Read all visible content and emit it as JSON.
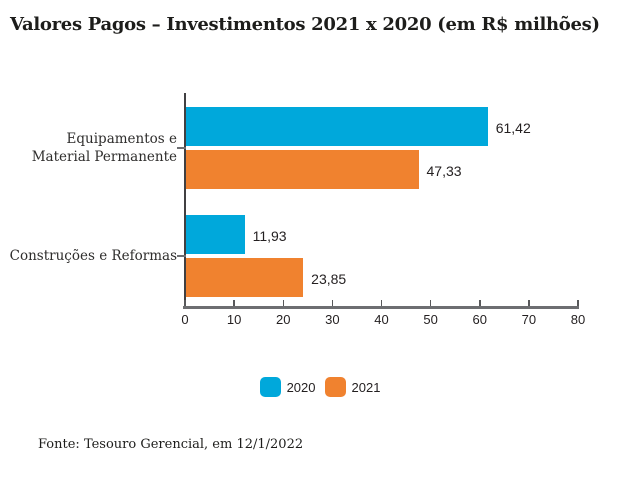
{
  "title": "Valores Pagos – Investimentos 2021 x 2020 (em R$ milhões)",
  "source_note": "Fonte: Tesouro Gerencial, em 12/1/2022",
  "colors": {
    "series_2020": "#00a8db",
    "series_2021": "#f0822f",
    "axis_line": "#6d6e71",
    "tick_mark": "#58595b",
    "text": "#231f20"
  },
  "legend": {
    "items": [
      {
        "label": "2020",
        "color": "#00a8db"
      },
      {
        "label": "2021",
        "color": "#f0822f"
      }
    ]
  },
  "chart_data": {
    "type": "bar",
    "orientation": "horizontal",
    "title": "Valores Pagos – Investimentos 2021 x 2020 (em R$ milhões)",
    "categories": [
      "Equipamentos e Material Permanente",
      "Construções e Reformas"
    ],
    "category_label_lines": [
      [
        "Equipamentos e",
        "Material Permanente"
      ],
      [
        "Construções e Reformas"
      ]
    ],
    "series": [
      {
        "name": "2020",
        "color": "#00a8db",
        "values": [
          61.42,
          11.93
        ],
        "value_labels": [
          "61,42",
          "11,93"
        ]
      },
      {
        "name": "2021",
        "color": "#f0822f",
        "values": [
          47.33,
          23.85
        ],
        "value_labels": [
          "47,33",
          "23,85"
        ]
      }
    ],
    "xlim": [
      0,
      80
    ],
    "xticks": [
      "0",
      "10",
      "20",
      "30",
      "40",
      "50",
      "60",
      "70",
      "80"
    ],
    "grid": false,
    "legend_position": "bottom",
    "source_note": "Fonte: Tesouro Gerencial, em 12/1/2022"
  }
}
